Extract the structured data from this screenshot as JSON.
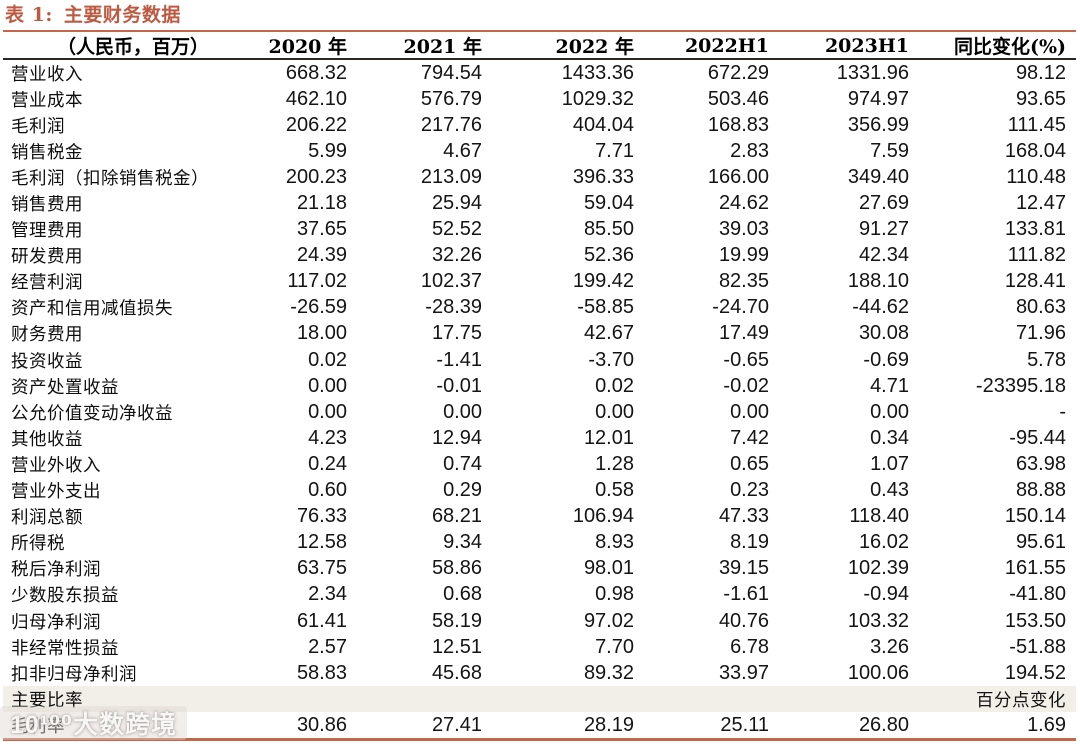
{
  "title": {
    "prefix": "表 1:",
    "text": "主要财务数据"
  },
  "table": {
    "columns": [
      "（人民币，百万）",
      "2020 年",
      "2021 年",
      "2022 年",
      "2022H1",
      "2023H1",
      "同比变化(%)"
    ],
    "rows": [
      {
        "label": "营业收入",
        "values": [
          "668.32",
          "794.54",
          "1433.36",
          "672.29",
          "1331.96",
          "98.12"
        ]
      },
      {
        "label": "营业成本",
        "values": [
          "462.10",
          "576.79",
          "1029.32",
          "503.46",
          "974.97",
          "93.65"
        ]
      },
      {
        "label": "毛利润",
        "values": [
          "206.22",
          "217.76",
          "404.04",
          "168.83",
          "356.99",
          "111.45"
        ]
      },
      {
        "label": "销售税金",
        "values": [
          "5.99",
          "4.67",
          "7.71",
          "2.83",
          "7.59",
          "168.04"
        ]
      },
      {
        "label": "毛利润（扣除销售税金）",
        "values": [
          "200.23",
          "213.09",
          "396.33",
          "166.00",
          "349.40",
          "110.48"
        ]
      },
      {
        "label": "销售费用",
        "values": [
          "21.18",
          "25.94",
          "59.04",
          "24.62",
          "27.69",
          "12.47"
        ]
      },
      {
        "label": "管理费用",
        "values": [
          "37.65",
          "52.52",
          "85.50",
          "39.03",
          "91.27",
          "133.81"
        ]
      },
      {
        "label": "研发费用",
        "values": [
          "24.39",
          "32.26",
          "52.36",
          "19.99",
          "42.34",
          "111.82"
        ]
      },
      {
        "label": "经营利润",
        "values": [
          "117.02",
          "102.37",
          "199.42",
          "82.35",
          "188.10",
          "128.41"
        ]
      },
      {
        "label": "资产和信用减值损失",
        "values": [
          "-26.59",
          "-28.39",
          "-58.85",
          "-24.70",
          "-44.62",
          "80.63"
        ]
      },
      {
        "label": "财务费用",
        "values": [
          "18.00",
          "17.75",
          "42.67",
          "17.49",
          "30.08",
          "71.96"
        ]
      },
      {
        "label": "投资收益",
        "values": [
          "0.02",
          "-1.41",
          "-3.70",
          "-0.65",
          "-0.69",
          "5.78"
        ]
      },
      {
        "label": "资产处置收益",
        "values": [
          "0.00",
          "-0.01",
          "0.02",
          "-0.02",
          "4.71",
          "-23395.18"
        ]
      },
      {
        "label": "公允价值变动净收益",
        "values": [
          "0.00",
          "0.00",
          "0.00",
          "0.00",
          "0.00",
          "-"
        ]
      },
      {
        "label": "其他收益",
        "values": [
          "4.23",
          "12.94",
          "12.01",
          "7.42",
          "0.34",
          "-95.44"
        ]
      },
      {
        "label": "营业外收入",
        "values": [
          "0.24",
          "0.74",
          "1.28",
          "0.65",
          "1.07",
          "63.98"
        ]
      },
      {
        "label": "营业外支出",
        "values": [
          "0.60",
          "0.29",
          "0.58",
          "0.23",
          "0.43",
          "88.88"
        ]
      },
      {
        "label": "利润总额",
        "values": [
          "76.33",
          "68.21",
          "106.94",
          "47.33",
          "118.40",
          "150.14"
        ]
      },
      {
        "label": "所得税",
        "values": [
          "12.58",
          "9.34",
          "8.93",
          "8.19",
          "16.02",
          "95.61"
        ]
      },
      {
        "label": "税后净利润",
        "values": [
          "63.75",
          "58.86",
          "98.01",
          "39.15",
          "102.39",
          "161.55"
        ]
      },
      {
        "label": "少数股东损益",
        "values": [
          "2.34",
          "0.68",
          "0.98",
          "-1.61",
          "-0.94",
          "-41.80"
        ]
      },
      {
        "label": "归母净利润",
        "values": [
          "61.41",
          "58.19",
          "97.02",
          "40.76",
          "103.32",
          "153.50"
        ]
      },
      {
        "label": "非经常性损益",
        "values": [
          "2.57",
          "12.51",
          "7.70",
          "6.78",
          "3.26",
          "-51.88"
        ]
      },
      {
        "label": "扣非归母净利润",
        "values": [
          "58.83",
          "45.68",
          "89.32",
          "33.97",
          "100.06",
          "194.52"
        ]
      },
      {
        "label": "主要比率",
        "values": [
          "",
          "",
          "",
          "",
          "",
          "百分点变化"
        ],
        "section": true
      },
      {
        "label": "毛利率",
        "values": [
          "30.86",
          "27.41",
          "28.19",
          "25.11",
          "26.80",
          "1.69"
        ]
      }
    ]
  },
  "watermark": {
    "text": "10¹⁰⁰大数跨境"
  },
  "colors": {
    "accent": "#BC5B42",
    "rule": "#C3664B",
    "header_border": "#2b2724",
    "section_bg": "#F2EEE8"
  }
}
